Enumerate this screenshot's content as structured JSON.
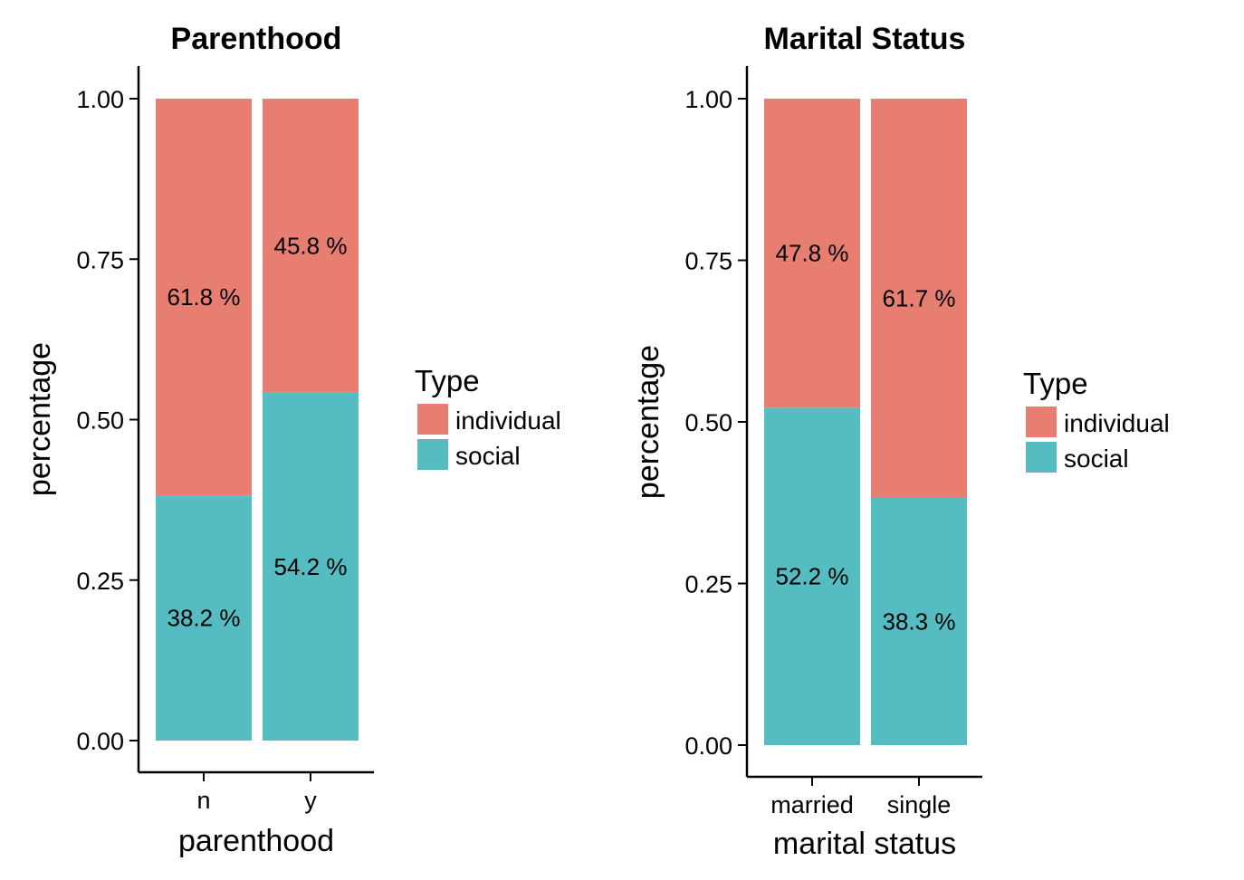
{
  "chart_data": [
    {
      "type": "bar",
      "stacked": true,
      "title": "Parenthood",
      "xlabel": "parenthood",
      "ylabel": "percentage",
      "ylim": [
        0,
        1
      ],
      "yticks": [
        "0.00",
        "0.25",
        "0.50",
        "0.75",
        "1.00"
      ],
      "categories": [
        "n",
        "y"
      ],
      "series": [
        {
          "name": "individual",
          "color": "#E87E72",
          "values": [
            0.618,
            0.458
          ],
          "labels": [
            "61.8 %",
            "45.8 %"
          ]
        },
        {
          "name": "social",
          "color": "#55BCC2",
          "values": [
            0.382,
            0.542
          ],
          "labels": [
            "38.2 %",
            "54.2 %"
          ]
        }
      ],
      "legend": {
        "title": "Type",
        "position": "right"
      }
    },
    {
      "type": "bar",
      "stacked": true,
      "title": "Marital Status",
      "xlabel": "marital status",
      "ylabel": "percentage",
      "ylim": [
        0,
        1
      ],
      "yticks": [
        "0.00",
        "0.25",
        "0.50",
        "0.75",
        "1.00"
      ],
      "categories": [
        "married",
        "single"
      ],
      "series": [
        {
          "name": "individual",
          "color": "#E87E72",
          "values": [
            0.478,
            0.617
          ],
          "labels": [
            "47.8 %",
            "61.7 %"
          ]
        },
        {
          "name": "social",
          "color": "#55BCC2",
          "values": [
            0.522,
            0.383
          ],
          "labels": [
            "52.2 %",
            "38.3 %"
          ]
        }
      ],
      "legend": {
        "title": "Type",
        "position": "right"
      }
    }
  ]
}
